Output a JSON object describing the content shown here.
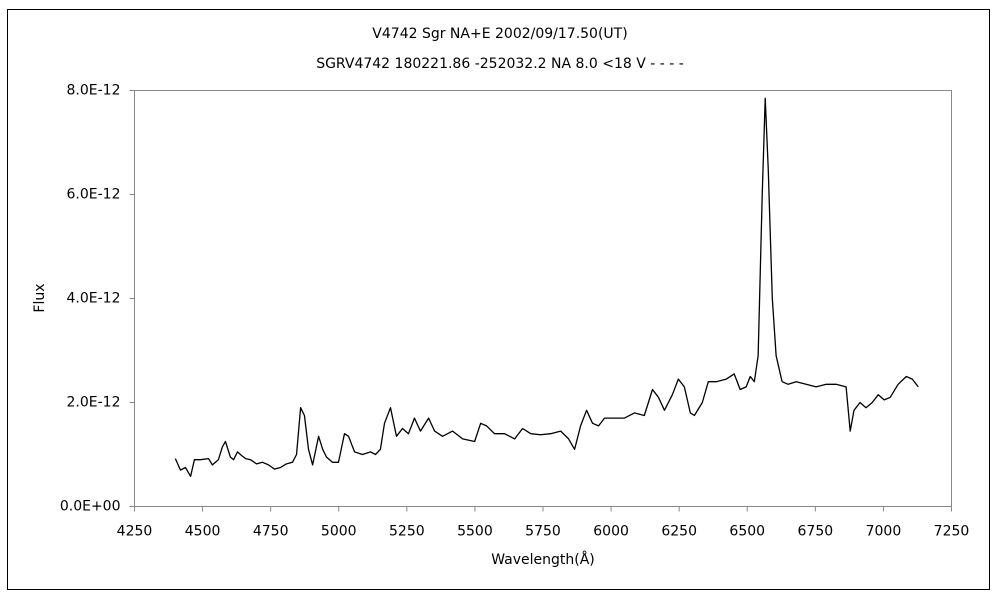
{
  "chart_data": {
    "type": "line",
    "title": "V4742 Sgr    NA+E    2002/09/17.50(UT)",
    "subtitle": "SGRV4742 180221.86 -252032.2 NA 8.0 <18 V - - - -",
    "x_label": "Wavelength(Å)",
    "y_label": "Flux",
    "xlim": [
      4250,
      7250
    ],
    "xticks": [
      4250,
      4500,
      4750,
      5000,
      5250,
      5500,
      5750,
      6000,
      6250,
      6500,
      6750,
      7000,
      7250
    ],
    "ylim": [
      0,
      8e-12
    ],
    "yticks": [
      {
        "value": 0,
        "label": "0.0E+00"
      },
      {
        "value": 2e-12,
        "label": "2.0E-12"
      },
      {
        "value": 4e-12,
        "label": "4.0E-12"
      },
      {
        "value": 6e-12,
        "label": "6.0E-12"
      },
      {
        "value": 8e-12,
        "label": "8.0E-12"
      }
    ],
    "grid": false,
    "x": [
      4400,
      4419,
      4437,
      4456,
      4470,
      4492,
      4522,
      4536,
      4558,
      4573,
      4584,
      4602,
      4614,
      4628,
      4643,
      4658,
      4676,
      4698,
      4720,
      4742,
      4764,
      4786,
      4808,
      4830,
      4845,
      4860,
      4874,
      4889,
      4904,
      4926,
      4941,
      4955,
      4977,
      4999,
      5021,
      5036,
      5058,
      5087,
      5117,
      5135,
      5153,
      5168,
      5190,
      5212,
      5234,
      5256,
      5278,
      5300,
      5330,
      5352,
      5381,
      5418,
      5455,
      5499,
      5521,
      5543,
      5572,
      5609,
      5646,
      5675,
      5705,
      5741,
      5778,
      5815,
      5844,
      5866,
      5888,
      5910,
      5932,
      5954,
      5976,
      6012,
      6049,
      6086,
      6122,
      6152,
      6174,
      6196,
      6225,
      6247,
      6269,
      6291,
      6306,
      6335,
      6357,
      6386,
      6423,
      6452,
      6474,
      6496,
      6511,
      6526,
      6540,
      6555,
      6566,
      6577,
      6592,
      6606,
      6628,
      6650,
      6680,
      6716,
      6753,
      6790,
      6826,
      6863,
      6878,
      6892,
      6914,
      6936,
      6959,
      6981,
      7003,
      7025,
      7054,
      7084,
      7106,
      7128
    ],
    "series": [
      {
        "color": "#000000",
        "values": [
          9.2e-13,
          7e-13,
          7.5e-13,
          5.8e-13,
          9e-13,
          9e-13,
          9.2e-13,
          8e-13,
          9e-13,
          1.15e-12,
          1.25e-12,
          9.5e-13,
          9e-13,
          1.05e-12,
          9.8e-13,
          9.2e-13,
          9e-13,
          8.2e-13,
          8.5e-13,
          8e-13,
          7.2e-13,
          7.5e-13,
          8.2e-13,
          8.5e-13,
          1e-12,
          1.9e-12,
          1.75e-12,
          1.1e-12,
          8e-13,
          1.35e-12,
          1.1e-12,
          9.5e-13,
          8.5e-13,
          8.5e-13,
          1.4e-12,
          1.35e-12,
          1.05e-12,
          1e-12,
          1.05e-12,
          1e-12,
          1.1e-12,
          1.6e-12,
          1.9e-12,
          1.35e-12,
          1.5e-12,
          1.4e-12,
          1.7e-12,
          1.45e-12,
          1.7e-12,
          1.45e-12,
          1.35e-12,
          1.45e-12,
          1.3e-12,
          1.25e-12,
          1.6e-12,
          1.55e-12,
          1.4e-12,
          1.4e-12,
          1.3e-12,
          1.5e-12,
          1.4e-12,
          1.38e-12,
          1.4e-12,
          1.45e-12,
          1.3e-12,
          1.1e-12,
          1.55e-12,
          1.85e-12,
          1.6e-12,
          1.55e-12,
          1.7e-12,
          1.7e-12,
          1.7e-12,
          1.8e-12,
          1.75e-12,
          2.25e-12,
          2.1e-12,
          1.85e-12,
          2.15e-12,
          2.45e-12,
          2.3e-12,
          1.8e-12,
          1.75e-12,
          2e-12,
          2.4e-12,
          2.4e-12,
          2.45e-12,
          2.55e-12,
          2.25e-12,
          2.3e-12,
          2.5e-12,
          2.4e-12,
          2.9e-12,
          6e-12,
          7.85e-12,
          6.5e-12,
          4e-12,
          2.9e-12,
          2.4e-12,
          2.35e-12,
          2.4e-12,
          2.35e-12,
          2.3e-12,
          2.35e-12,
          2.35e-12,
          2.3e-12,
          1.45e-12,
          1.85e-12,
          2e-12,
          1.9e-12,
          2e-12,
          2.15e-12,
          2.05e-12,
          2.1e-12,
          2.35e-12,
          2.5e-12,
          2.45e-12,
          2.3e-12
        ]
      }
    ]
  }
}
